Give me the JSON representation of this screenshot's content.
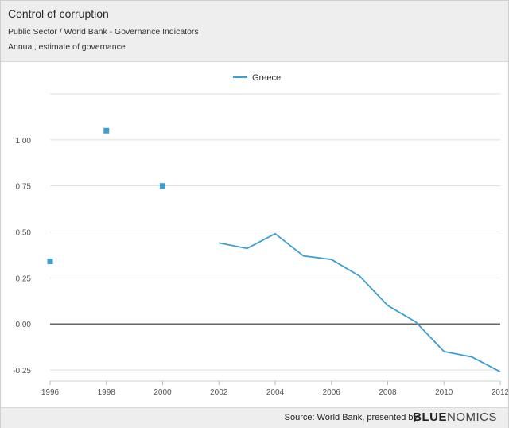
{
  "header": {
    "title": "Control of corruption",
    "subtitle": "Public Sector / World Bank - Governance Indicators",
    "description": "Annual, estimate of governance"
  },
  "footer": {
    "source": "Source: World Bank, presented by",
    "brand_bold": "BLUE",
    "brand_thin": "NOMICS"
  },
  "colors": {
    "series": "#3b9fd4",
    "grid": "#dddddd",
    "zero": "#333333"
  },
  "chart_data": {
    "type": "line",
    "title": "Control of corruption",
    "xlabel": "",
    "ylabel": "",
    "xlim": [
      1996,
      2012
    ],
    "ylim": [
      -0.25,
      1.25
    ],
    "x_ticks": [
      1996,
      1998,
      2000,
      2002,
      2004,
      2006,
      2008,
      2010,
      2012
    ],
    "y_ticks": [
      -0.25,
      0.0,
      0.25,
      0.5,
      0.75,
      1.0
    ],
    "y_tick_labels": [
      "-0.25",
      "0.00",
      "0.25",
      "0.50",
      "0.75",
      "1.00"
    ],
    "legend": {
      "position": "top-center",
      "entries": [
        "Greece"
      ]
    },
    "series": [
      {
        "name": "Greece",
        "points": [
          {
            "x": 1996,
            "y": 0.34
          },
          {
            "x": 1998,
            "y": 1.05
          },
          {
            "x": 2000,
            "y": 0.75
          },
          {
            "x": 2002,
            "y": 0.44
          },
          {
            "x": 2003,
            "y": 0.41
          },
          {
            "x": 2004,
            "y": 0.49
          },
          {
            "x": 2005,
            "y": 0.37
          },
          {
            "x": 2006,
            "y": 0.35
          },
          {
            "x": 2007,
            "y": 0.26
          },
          {
            "x": 2008,
            "y": 0.1
          },
          {
            "x": 2009,
            "y": 0.01
          },
          {
            "x": 2010,
            "y": -0.15
          },
          {
            "x": 2011,
            "y": -0.18
          },
          {
            "x": 2012,
            "y": -0.26
          }
        ],
        "isolated_years": [
          1996,
          1998,
          2000
        ]
      }
    ]
  }
}
